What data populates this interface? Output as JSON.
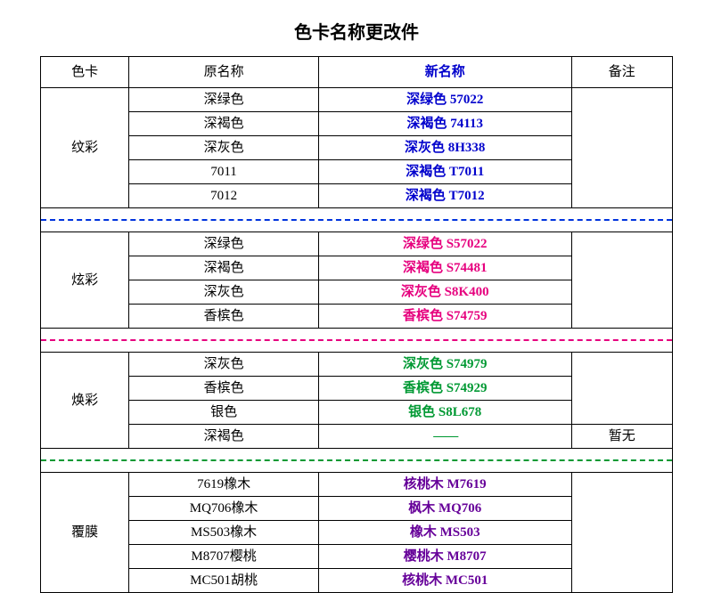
{
  "title": "色卡名称更改件",
  "columns": {
    "card": "色卡",
    "old": "原名称",
    "new": "新名称",
    "remark": "备注"
  },
  "colors": {
    "header_new": "#0000cc",
    "group1_new": "#0000cc",
    "group2_new": "#e6007e",
    "group3_new": "#009933",
    "group4_new": "#660099",
    "sep1": "#0033dd",
    "sep2": "#e6007e",
    "sep3": "#009933"
  },
  "groups": [
    {
      "name": "纹彩",
      "new_color": "#0000cc",
      "rows": [
        {
          "old": "深绿色",
          "new": "深绿色  57022",
          "remark": ""
        },
        {
          "old": "深褐色",
          "new": "深褐色  74113",
          "remark": ""
        },
        {
          "old": "深灰色",
          "new": "深灰色  8H338",
          "remark": ""
        },
        {
          "old": "7011",
          "new": "深褐色  T7011",
          "remark": ""
        },
        {
          "old": "7012",
          "new": "深褐色  T7012",
          "remark": ""
        }
      ]
    },
    {
      "name": "炫彩",
      "new_color": "#e6007e",
      "rows": [
        {
          "old": "深绿色",
          "new": "深绿色  S57022",
          "remark": ""
        },
        {
          "old": "深褐色",
          "new": "深褐色  S74481",
          "remark": ""
        },
        {
          "old": "深灰色",
          "new": "深灰色  S8K400",
          "remark": ""
        },
        {
          "old": "香槟色",
          "new": "香槟色  S74759",
          "remark": ""
        }
      ]
    },
    {
      "name": "焕彩",
      "new_color": "#009933",
      "rows": [
        {
          "old": "深灰色",
          "new": "深灰色  S74979",
          "remark": ""
        },
        {
          "old": "香槟色",
          "new": "香槟色  S74929",
          "remark": ""
        },
        {
          "old": "银色",
          "new": "银色  S8L678",
          "remark": ""
        },
        {
          "old": "深褐色",
          "new": "——",
          "remark": "暂无",
          "dash": true
        }
      ]
    },
    {
      "name": "覆膜",
      "new_color": "#660099",
      "rows": [
        {
          "old": "7619橡木",
          "new": "核桃木  M7619",
          "remark": ""
        },
        {
          "old": "MQ706橡木",
          "new": "枫木  MQ706",
          "remark": ""
        },
        {
          "old": "MS503橡木",
          "new": "橡木  MS503",
          "remark": ""
        },
        {
          "old": "M8707樱桃",
          "new": "樱桃木  M8707",
          "remark": ""
        },
        {
          "old": "MC501胡桃",
          "new": "核桃木  MC501",
          "remark": ""
        }
      ]
    }
  ],
  "separators": [
    "dash-blue",
    "dash-pink",
    "dash-green"
  ]
}
